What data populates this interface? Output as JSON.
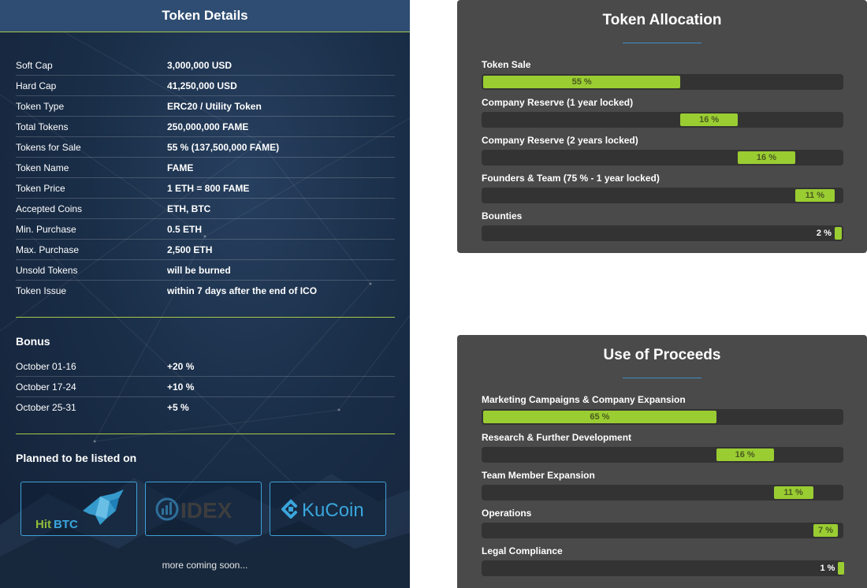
{
  "token_details": {
    "title": "Token Details",
    "rows": [
      {
        "label": "Soft Cap",
        "value": "3,000,000 USD"
      },
      {
        "label": "Hard Cap",
        "value": "41,250,000 USD"
      },
      {
        "label": "Token Type",
        "value": "ERC20 / Utility Token"
      },
      {
        "label": "Total Tokens",
        "value": "250,000,000 FAME"
      },
      {
        "label": "Tokens for Sale",
        "value": "55 % (137,500,000 FAME)"
      },
      {
        "label": "Token Name",
        "value": "FAME"
      },
      {
        "label": "Token Price",
        "value": "1 ETH = 800 FAME"
      },
      {
        "label": "Accepted Coins",
        "value": "ETH, BTC"
      },
      {
        "label": "Min. Purchase",
        "value": "0.5 ETH"
      },
      {
        "label": "Max. Purchase",
        "value": "2,500 ETH"
      },
      {
        "label": "Unsold Tokens",
        "value": "will be burned"
      },
      {
        "label": "Token Issue",
        "value": "within 7 days after the end of ICO"
      }
    ],
    "bonus": {
      "title": "Bonus",
      "rows": [
        {
          "label": "October 01-16",
          "value": "+20 %"
        },
        {
          "label": "October 17-24",
          "value": "+10 %"
        },
        {
          "label": "October 25-31",
          "value": "+5 %"
        }
      ]
    },
    "listing": {
      "title": "Planned to be listed on",
      "exchanges": [
        {
          "name": "HitBTC",
          "logo_text_1": "Hit",
          "logo_text_2": "BTC"
        },
        {
          "name": "IDEX",
          "logo_text": "IDEX"
        },
        {
          "name": "KuCoin",
          "logo_text": "KuCoin"
        }
      ],
      "more_text": "more coming soon..."
    }
  },
  "token_allocation": {
    "title": "Token Allocation",
    "items": [
      {
        "label": "Token Sale",
        "percent": 55,
        "offset": 0,
        "text": "55 %"
      },
      {
        "label": "Company Reserve (1 year locked)",
        "percent": 16,
        "offset": 55,
        "text": "16 %"
      },
      {
        "label": "Company Reserve (2 years locked)",
        "percent": 16,
        "offset": 71,
        "text": "16 %"
      },
      {
        "label": "Founders & Team (75 % - 1 year locked)",
        "percent": 11,
        "offset": 87,
        "text": "11 %"
      },
      {
        "label": "Bounties",
        "percent": 2,
        "offset": 98,
        "text": "2 %"
      }
    ]
  },
  "use_of_proceeds": {
    "title": "Use of Proceeds",
    "items": [
      {
        "label": "Marketing Campaigns & Company Expansion",
        "percent": 65,
        "offset": 0,
        "text": "65 %"
      },
      {
        "label": "Research & Further Development",
        "percent": 16,
        "offset": 65,
        "text": "16 %"
      },
      {
        "label": "Team Member Expansion",
        "percent": 11,
        "offset": 81,
        "text": "11 %"
      },
      {
        "label": "Operations",
        "percent": 7,
        "offset": 92,
        "text": "7 %"
      },
      {
        "label": "Legal Compliance",
        "percent": 1,
        "offset": 99,
        "text": "1 %"
      }
    ]
  },
  "colors": {
    "bar_fill": "#9acd32",
    "bar_track": "#333333",
    "card_bg": "#4a4a4a",
    "accent_line": "#a8c84a",
    "exchange_border": "#3fa1d8"
  }
}
